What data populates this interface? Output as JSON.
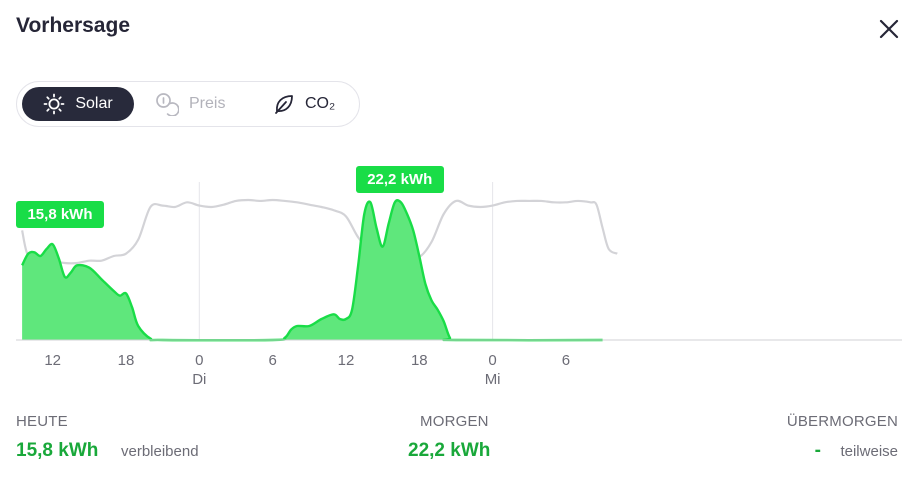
{
  "header": {
    "title": "Vorhersage",
    "close_icon": "close-icon"
  },
  "tabs": [
    {
      "label": "Solar",
      "icon": "sun-icon",
      "active": true
    },
    {
      "label": "Preis",
      "icon": "coins-icon",
      "active": false
    },
    {
      "label": "CO₂",
      "icon": "leaf-icon",
      "active": false
    }
  ],
  "colors": {
    "accent": "#19dd47",
    "accent_text": "#19a83a",
    "area_fill": "#5fe77c",
    "price_line": "#d3d3d7",
    "dark": "#282a3b"
  },
  "chart_data": {
    "type": "area",
    "x_unit": "hours from today 00:00",
    "xlim": [
      9,
      81.5
    ],
    "ylim": [
      0,
      3.0
    ],
    "x_ticks": [
      {
        "x": 12,
        "label": "12",
        "day": ""
      },
      {
        "x": 18,
        "label": "18",
        "day": ""
      },
      {
        "x": 24,
        "label": "0",
        "day": "Di"
      },
      {
        "x": 30,
        "label": "6",
        "day": ""
      },
      {
        "x": 36,
        "label": "12",
        "day": ""
      },
      {
        "x": 42,
        "label": "18",
        "day": ""
      },
      {
        "x": 48,
        "label": "0",
        "day": "Mi"
      },
      {
        "x": 54,
        "label": "6",
        "day": ""
      }
    ],
    "day_dividers": [
      24,
      48
    ],
    "series": [
      {
        "type": "area",
        "points": [
          [
            9.5,
            1.6
          ],
          [
            10,
            1.85
          ],
          [
            10.5,
            1.88
          ],
          [
            11,
            1.8
          ],
          [
            11.5,
            1.95
          ],
          [
            12,
            2.05
          ],
          [
            12.5,
            1.75
          ],
          [
            13,
            1.35
          ],
          [
            13.5,
            1.45
          ],
          [
            14,
            1.6
          ],
          [
            15,
            1.55
          ],
          [
            16,
            1.3
          ],
          [
            17,
            1.05
          ],
          [
            17.5,
            0.95
          ],
          [
            18,
            1.0
          ],
          [
            18.5,
            0.7
          ],
          [
            19,
            0.3
          ],
          [
            20,
            0.03
          ],
          [
            21,
            0
          ],
          [
            30,
            0
          ],
          [
            31,
            0.05
          ],
          [
            31.5,
            0.22
          ],
          [
            32,
            0.3
          ],
          [
            33,
            0.3
          ],
          [
            34,
            0.45
          ],
          [
            35,
            0.55
          ],
          [
            35.5,
            0.45
          ],
          [
            36,
            0.45
          ],
          [
            36.5,
            0.65
          ],
          [
            37,
            1.6
          ],
          [
            37.5,
            2.7
          ],
          [
            38,
            2.95
          ],
          [
            38.5,
            2.4
          ],
          [
            39,
            2.0
          ],
          [
            39.5,
            2.5
          ],
          [
            40,
            2.95
          ],
          [
            40.5,
            2.95
          ],
          [
            41,
            2.7
          ],
          [
            41.5,
            2.35
          ],
          [
            42,
            1.8
          ],
          [
            42.5,
            1.2
          ],
          [
            43,
            0.85
          ],
          [
            43.5,
            0.65
          ],
          [
            44,
            0.4
          ],
          [
            44.5,
            0.05
          ],
          [
            45,
            0
          ],
          [
            57,
            0
          ]
        ]
      },
      {
        "type": "line",
        "points": [
          [
            9.5,
            2.35
          ],
          [
            10,
            1.8
          ],
          [
            11,
            1.75
          ],
          [
            12,
            1.7
          ],
          [
            13,
            1.65
          ],
          [
            14,
            1.65
          ],
          [
            15,
            1.7
          ],
          [
            16,
            1.7
          ],
          [
            17,
            1.8
          ],
          [
            18,
            1.85
          ],
          [
            19,
            2.15
          ],
          [
            20,
            2.85
          ],
          [
            21,
            2.88
          ],
          [
            22,
            2.85
          ],
          [
            23,
            2.95
          ],
          [
            24,
            2.88
          ],
          [
            25,
            2.85
          ],
          [
            26,
            2.9
          ],
          [
            27,
            2.98
          ],
          [
            28,
            3.0
          ],
          [
            29,
            2.98
          ],
          [
            30,
            3.0
          ],
          [
            31,
            2.98
          ],
          [
            32,
            2.95
          ],
          [
            33,
            2.9
          ],
          [
            34,
            2.85
          ],
          [
            35,
            2.78
          ],
          [
            36,
            2.65
          ],
          [
            37,
            2.2
          ],
          [
            38,
            1.92
          ],
          [
            39,
            1.85
          ],
          [
            40,
            1.82
          ],
          [
            41,
            1.8
          ],
          [
            42,
            1.78
          ],
          [
            43,
            2.1
          ],
          [
            44,
            2.7
          ],
          [
            45,
            2.98
          ],
          [
            46,
            2.88
          ],
          [
            47,
            2.85
          ],
          [
            48,
            2.88
          ],
          [
            49,
            2.95
          ],
          [
            50,
            2.98
          ],
          [
            51,
            2.98
          ],
          [
            52,
            2.98
          ],
          [
            53,
            2.95
          ],
          [
            54,
            2.95
          ],
          [
            55,
            2.98
          ],
          [
            56,
            2.95
          ],
          [
            56.5,
            2.9
          ],
          [
            57,
            2.4
          ],
          [
            57.5,
            1.95
          ],
          [
            58.2,
            1.85
          ]
        ]
      }
    ],
    "annotations": [
      {
        "label": "15,8 kWh",
        "x_from": 9.0,
        "x_to": 16.2
      },
      {
        "label": "22,2 kWh",
        "x_from": 36.8,
        "x_to": 44.0
      }
    ]
  },
  "summary": {
    "today": {
      "label": "HEUTE",
      "value": "15,8 kWh",
      "note": "verbleibend"
    },
    "tomorrow": {
      "label": "MORGEN",
      "value": "22,2 kWh"
    },
    "day_after": {
      "label": "ÜBERMORGEN",
      "value": "-",
      "note": "teilweise"
    }
  }
}
